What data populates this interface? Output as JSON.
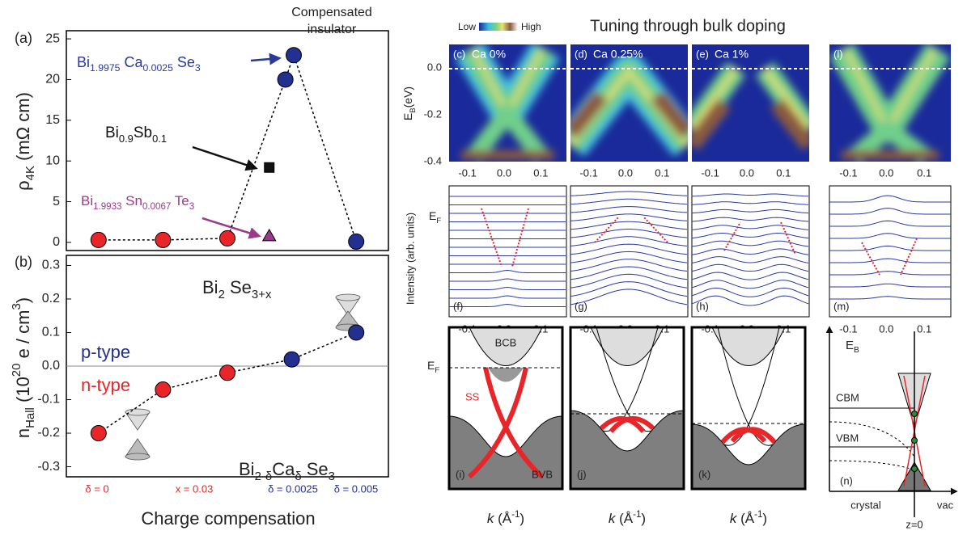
{
  "chart_data": [
    {
      "type": "scatter",
      "label": "(a)",
      "title": [
        "Compensated",
        "insulator"
      ],
      "y_label": [
        {
          "t": "ρ"
        },
        {
          "s": "4K"
        },
        {
          "t": " (mΩ cm)"
        }
      ],
      "xlim": [
        -0.5,
        4.5
      ],
      "ylim": [
        -1,
        26
      ],
      "yticks": [
        0,
        5,
        10,
        15,
        20,
        25
      ],
      "connect": [
        0,
        1
      ],
      "series": [
        {
          "marker": "circle",
          "color": "#e8262a",
          "x": [
            0,
            1,
            2
          ],
          "values": [
            0.3,
            0.3,
            0.5
          ]
        },
        {
          "marker": "circle",
          "color": "#23308f",
          "x": [
            2.9,
            3.03,
            4
          ],
          "values": [
            20,
            23,
            0.1
          ]
        },
        {
          "marker": "square",
          "color": "#111111",
          "x": [
            2.65
          ],
          "values": [
            9.2
          ]
        },
        {
          "marker": "triangle",
          "color": "#9b3a8a",
          "x": [
            2.65
          ],
          "values": [
            0.8
          ]
        }
      ],
      "annotations": [
        {
          "color": "#2b3a9a",
          "parts": [
            {
              "t": "Bi"
            },
            {
              "s": "1.9975"
            },
            {
              "t": " Ca"
            },
            {
              "s": "0.0025"
            },
            {
              "t": " Se"
            },
            {
              "s": "3"
            }
          ]
        },
        {
          "color": "#111111",
          "parts": [
            {
              "t": "Bi"
            },
            {
              "s": "0.9"
            },
            {
              "t": "Sb"
            },
            {
              "s": "0.1"
            }
          ]
        },
        {
          "color": "#9b3a8a",
          "parts": [
            {
              "t": "Bi"
            },
            {
              "s": "1.9933"
            },
            {
              "t": " Sn"
            },
            {
              "s": "0.0067"
            },
            {
              "t": " Te"
            },
            {
              "s": "3"
            }
          ]
        }
      ]
    },
    {
      "type": "scatter",
      "label": "(b)",
      "y_label": [
        {
          "t": "n"
        },
        {
          "s": "Hall"
        },
        {
          "t": " (10"
        },
        {
          "p": "20"
        },
        {
          "t": " e / cm"
        },
        {
          "p": "3"
        },
        {
          "t": ")"
        }
      ],
      "xlim": [
        -0.5,
        4.5
      ],
      "ylim": [
        -0.33,
        0.33
      ],
      "yticks": [
        -0.3,
        -0.2,
        -0.1,
        {
          "value": 0,
          "label": "0.0"
        },
        0.1,
        0.2,
        0.3
      ],
      "zero_line": true,
      "connect": [
        0,
        1
      ],
      "series": [
        {
          "marker": "circle",
          "color": "#e8262a",
          "x": [
            0,
            1,
            2
          ],
          "values": [
            -0.2,
            -0.07,
            -0.02
          ]
        },
        {
          "marker": "circle",
          "color": "#23308f",
          "x": [
            3,
            4
          ],
          "values": [
            0.02,
            0.1
          ]
        }
      ],
      "annotations": [
        {
          "color": "#222222",
          "parts": [
            {
              "t": "Bi"
            },
            {
              "s": "2"
            },
            {
              "t": " Se"
            },
            {
              "s": "3+x"
            }
          ]
        },
        {
          "color": "#23308f",
          "parts": [
            {
              "t": "p-type"
            }
          ]
        },
        {
          "color": "#e8262a",
          "parts": [
            {
              "t": "n-type"
            }
          ]
        },
        {
          "color": "#222222",
          "parts": [
            {
              "t": "Bi"
            },
            {
              "s": "2-δ"
            },
            {
              "t": "Ca"
            },
            {
              "s": "δ"
            },
            {
              "t": " Se"
            },
            {
              "s": "3"
            }
          ]
        }
      ],
      "x_label": "Charge compensation",
      "x_notes": [
        {
          "text": "δ = 0",
          "color": "#e8262a"
        },
        {
          "text": "x = 0.03",
          "color": "#e8262a"
        },
        {
          "text": "δ = 0.0025",
          "color": "#23308f"
        },
        {
          "text": "δ = 0.005",
          "color": "#23308f"
        }
      ]
    }
  ],
  "arpes": {
    "title": "Tuning through bulk doping",
    "colorbar": [
      "Low",
      "High"
    ],
    "y_label": [
      {
        "t": "E"
      },
      {
        "s": "B"
      },
      {
        "t": "(eV)"
      }
    ],
    "ylim": [
      -0.4,
      0.1
    ],
    "yticks": [
      {
        "value": 0,
        "label": "0.0"
      },
      -0.2,
      -0.4
    ],
    "xlim": [
      -0.15,
      0.17
    ],
    "xticks": [
      -0.1,
      {
        "value": 0,
        "label": "0.0"
      },
      0.1
    ],
    "panels": [
      {
        "label": "(c)",
        "name": "Ca 0%"
      },
      {
        "label": "(d)",
        "name": "Ca 0.25%"
      },
      {
        "label": "(e)",
        "name": "Ca 1%"
      },
      {
        "label": "(l)"
      }
    ],
    "edc": {
      "y_label": "Intensity (arb. units)",
      "ef": [
        {
          "t": "E"
        },
        {
          "s": "F"
        }
      ],
      "labels": [
        "(f)",
        "(g)",
        "(h)",
        "(m)"
      ]
    },
    "bands": {
      "labels": [
        "(i)",
        "(j)",
        "(k)"
      ],
      "bcb": "BCB",
      "bvb": "BVB",
      "ss": "SS",
      "ef": [
        {
          "t": "E"
        },
        {
          "s": "F"
        }
      ],
      "k_label": [
        {
          "t": "k",
          "i": true
        },
        {
          "t": " (Å"
        },
        {
          "p": "-1"
        },
        {
          "t": ")"
        }
      ]
    },
    "schematic": {
      "label": "(n)",
      "eb": [
        {
          "t": "E"
        },
        {
          "s": "B"
        }
      ],
      "cbm": "CBM",
      "vbm": "VBM",
      "crystal": "crystal",
      "vac": "vac",
      "z0": "z=0"
    }
  }
}
